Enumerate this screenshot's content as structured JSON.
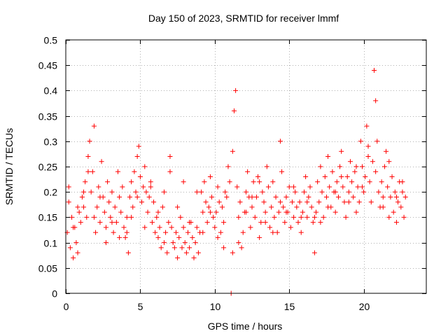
{
  "chart_data": {
    "type": "scatter",
    "title": "Day 150 of 2023, SRMTID for receiver lmmf",
    "xlabel": "GPS time / hours",
    "ylabel": "SRMTID / TECUs",
    "xlim": [
      0,
      24.2
    ],
    "ylim": [
      0,
      0.5
    ],
    "x_ticks": [
      0,
      5,
      10,
      15,
      20
    ],
    "y_ticks": [
      0,
      0.05,
      0.1,
      0.15,
      0.2,
      0.25,
      0.3,
      0.35,
      0.4,
      0.45,
      0.5
    ],
    "grid": true,
    "marker": "plus",
    "color": "#ff0000",
    "series": [
      {
        "name": "SRMTID",
        "x": [
          0.1,
          0.2,
          0.3,
          0.4,
          0.5,
          0.6,
          0.7,
          0.8,
          0.9,
          1.0,
          1.1,
          1.2,
          1.3,
          1.4,
          1.5,
          1.6,
          1.7,
          1.8,
          1.9,
          2.0,
          2.1,
          2.2,
          2.3,
          2.4,
          2.5,
          2.6,
          2.7,
          2.8,
          2.9,
          3.0,
          3.1,
          3.2,
          3.3,
          3.4,
          3.5,
          3.6,
          3.7,
          3.8,
          3.9,
          4.0,
          4.1,
          4.2,
          4.3,
          4.4,
          4.5,
          4.6,
          4.7,
          4.8,
          4.9,
          5.0,
          5.1,
          5.2,
          5.3,
          5.4,
          5.5,
          5.6,
          5.7,
          5.8,
          5.9,
          6.0,
          6.1,
          6.2,
          6.3,
          6.4,
          6.5,
          6.6,
          6.7,
          6.8,
          6.9,
          7.0,
          7.1,
          7.2,
          7.3,
          7.4,
          7.5,
          7.6,
          7.7,
          7.8,
          7.9,
          8.0,
          8.1,
          8.2,
          8.3,
          8.4,
          8.5,
          8.6,
          8.7,
          8.8,
          8.9,
          9.0,
          9.1,
          9.2,
          9.3,
          9.4,
          9.5,
          9.6,
          9.7,
          9.8,
          9.9,
          10.0,
          10.1,
          10.2,
          10.3,
          10.4,
          10.5,
          10.6,
          10.7,
          10.8,
          10.9,
          11.0,
          11.1,
          11.2,
          11.3,
          11.4,
          11.5,
          11.6,
          11.7,
          11.8,
          11.9,
          12.0,
          12.1,
          12.2,
          12.3,
          12.4,
          12.5,
          12.6,
          12.7,
          12.8,
          12.9,
          13.0,
          13.1,
          13.2,
          13.3,
          13.4,
          13.5,
          13.6,
          13.7,
          13.8,
          13.9,
          14.0,
          14.1,
          14.2,
          14.3,
          14.4,
          14.5,
          14.6,
          14.7,
          14.8,
          14.9,
          15.0,
          15.1,
          15.2,
          15.3,
          15.4,
          15.5,
          15.6,
          15.7,
          15.8,
          15.9,
          16.0,
          16.1,
          16.2,
          16.3,
          16.4,
          16.5,
          16.6,
          16.7,
          16.8,
          16.9,
          17.0,
          17.1,
          17.2,
          17.3,
          17.4,
          17.5,
          17.6,
          17.7,
          17.8,
          17.9,
          18.0,
          18.1,
          18.2,
          18.3,
          18.4,
          18.5,
          18.6,
          18.7,
          18.8,
          18.9,
          19.0,
          19.1,
          19.2,
          19.3,
          19.4,
          19.5,
          19.6,
          19.7,
          19.8,
          19.9,
          20.0,
          20.1,
          20.2,
          20.3,
          20.4,
          20.5,
          20.6,
          20.7,
          20.8,
          20.9,
          21.0,
          21.1,
          21.2,
          21.3,
          21.4,
          21.5,
          21.6,
          21.7,
          21.8,
          21.9,
          22.0,
          22.1,
          22.2,
          22.3,
          22.4,
          22.5,
          22.6,
          22.7,
          22.8,
          0.2,
          0.5,
          0.8,
          1.2,
          1.5,
          1.9,
          2.3,
          2.7,
          3.1,
          3.6,
          4.1,
          4.4,
          4.8,
          5.3,
          5.7,
          6.2,
          6.6,
          7.0,
          7.5,
          7.9,
          8.3,
          8.8,
          9.2,
          9.7,
          10.2,
          10.6,
          11.2,
          11.6,
          12.1,
          12.5,
          13.0,
          13.4,
          13.9,
          14.4,
          14.8,
          15.3,
          15.8,
          16.2,
          16.7,
          17.1,
          17.6,
          18.1,
          18.5,
          19.0,
          19.5,
          19.9,
          20.3,
          20.8,
          21.3,
          21.7,
          22.2,
          22.6
        ],
        "y": [
          0.12,
          0.18,
          0.09,
          0.15,
          0.07,
          0.13,
          0.1,
          0.08,
          0.16,
          0.14,
          0.19,
          0.17,
          0.22,
          0.15,
          0.27,
          0.3,
          0.2,
          0.24,
          0.15,
          0.12,
          0.17,
          0.21,
          0.14,
          0.26,
          0.19,
          0.16,
          0.13,
          0.22,
          0.18,
          0.15,
          0.2,
          0.12,
          0.17,
          0.14,
          0.24,
          0.19,
          0.16,
          0.21,
          0.13,
          0.11,
          0.15,
          0.08,
          0.19,
          0.22,
          0.17,
          0.24,
          0.2,
          0.27,
          0.29,
          0.23,
          0.18,
          0.21,
          0.25,
          0.2,
          0.16,
          0.19,
          0.22,
          0.14,
          0.18,
          0.12,
          0.15,
          0.11,
          0.13,
          0.09,
          0.17,
          0.1,
          0.12,
          0.08,
          0.14,
          0.27,
          0.13,
          0.1,
          0.09,
          0.12,
          0.07,
          0.11,
          0.15,
          0.09,
          0.13,
          0.1,
          0.08,
          0.12,
          0.09,
          0.14,
          0.11,
          0.07,
          0.1,
          0.13,
          0.08,
          0.12,
          0.2,
          0.16,
          0.22,
          0.18,
          0.14,
          0.17,
          0.23,
          0.19,
          0.15,
          0.13,
          0.16,
          0.21,
          0.18,
          0.12,
          0.17,
          0.14,
          0.2,
          0.19,
          0.25,
          0.22,
          0.0,
          0.28,
          0.36,
          0.4,
          0.21,
          0.15,
          0.18,
          0.09,
          0.12,
          0.16,
          0.2,
          0.24,
          0.19,
          0.13,
          0.17,
          0.22,
          0.15,
          0.19,
          0.23,
          0.11,
          0.14,
          0.2,
          0.18,
          0.16,
          0.25,
          0.21,
          0.13,
          0.17,
          0.22,
          0.15,
          0.19,
          0.12,
          0.16,
          0.3,
          0.24,
          0.17,
          0.14,
          0.19,
          0.16,
          0.21,
          0.13,
          0.18,
          0.15,
          0.2,
          0.17,
          0.14,
          0.18,
          0.12,
          0.16,
          0.2,
          0.23,
          0.15,
          0.19,
          0.21,
          0.17,
          0.14,
          0.08,
          0.16,
          0.22,
          0.18,
          0.25,
          0.2,
          0.15,
          0.23,
          0.19,
          0.27,
          0.21,
          0.17,
          0.24,
          0.2,
          0.16,
          0.22,
          0.19,
          0.25,
          0.28,
          0.21,
          0.18,
          0.15,
          0.23,
          0.2,
          0.26,
          0.22,
          0.19,
          0.24,
          0.16,
          0.21,
          0.18,
          0.3,
          0.25,
          0.2,
          0.23,
          0.33,
          0.27,
          0.22,
          0.18,
          0.26,
          0.44,
          0.38,
          0.3,
          0.2,
          0.17,
          0.22,
          0.19,
          0.25,
          0.28,
          0.21,
          0.15,
          0.19,
          0.23,
          0.16,
          0.2,
          0.14,
          0.18,
          0.22,
          0.17,
          0.2,
          0.15,
          0.19,
          0.21,
          0.13,
          0.17,
          0.2,
          0.24,
          0.33,
          0.19,
          0.1,
          0.14,
          0.11,
          0.12,
          0.15,
          0.19,
          0.13,
          0.21,
          0.16,
          0.2,
          0.24,
          0.17,
          0.22,
          0.14,
          0.2,
          0.12,
          0.16,
          0.11,
          0.09,
          0.08,
          0.1,
          0.16,
          0.19,
          0.22,
          0.14,
          0.12,
          0.18,
          0.16,
          0.21,
          0.15,
          0.18,
          0.15,
          0.14,
          0.17,
          0.2,
          0.23,
          0.18,
          0.25,
          0.21,
          0.29,
          0.24,
          0.17,
          0.26,
          0.19,
          0.22
        ]
      }
    ]
  }
}
